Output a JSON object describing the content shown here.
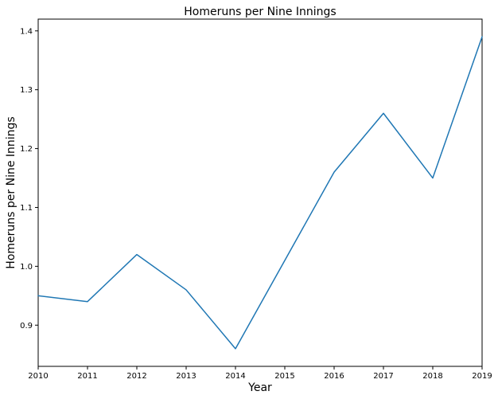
{
  "chart_data": {
    "type": "line",
    "title": "Homeruns per Nine Innings",
    "xlabel": "Year",
    "ylabel": "Homeruns per Nine Innings",
    "xlim": [
      2010,
      2019
    ],
    "ylim": [
      0.83,
      1.42
    ],
    "x_ticks": [
      "2010",
      "2011",
      "2012",
      "2013",
      "2014",
      "2015",
      "2016",
      "2017",
      "2018",
      "2019"
    ],
    "y_ticks": [
      "0.9",
      "1.0",
      "1.1",
      "1.2",
      "1.3",
      "1.4"
    ],
    "grid": false,
    "series": [
      {
        "color": "#1f77b4",
        "x": [
          2010,
          2011,
          2012,
          2013,
          2014,
          2015,
          2016,
          2017,
          2018,
          2019
        ],
        "y": [
          0.95,
          0.94,
          1.02,
          0.96,
          0.86,
          1.01,
          1.16,
          1.26,
          1.15,
          1.39
        ]
      }
    ]
  }
}
